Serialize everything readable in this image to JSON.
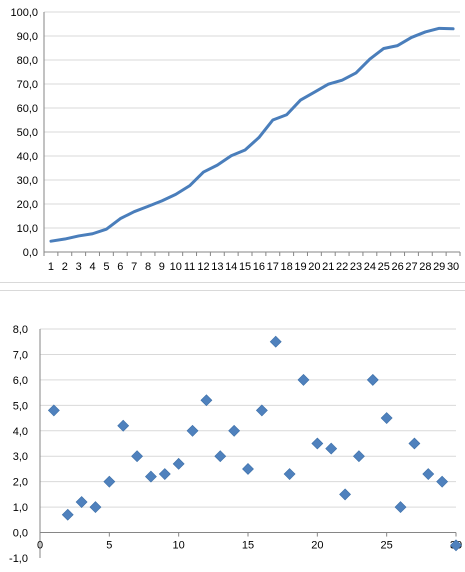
{
  "chart_data": [
    {
      "type": "line",
      "title": "",
      "xlabel": "",
      "ylabel": "",
      "categories": [
        "1",
        "2",
        "3",
        "4",
        "5",
        "6",
        "7",
        "8",
        "9",
        "10",
        "11",
        "12",
        "13",
        "14",
        "15",
        "16",
        "17",
        "18",
        "19",
        "20",
        "21",
        "22",
        "23",
        "24",
        "25",
        "26",
        "27",
        "28",
        "29",
        "30"
      ],
      "series": [
        {
          "color": "#4a7ebb",
          "values": [
            4.5,
            5.4,
            6.7,
            7.6,
            9.5,
            13.9,
            16.8,
            19.0,
            21.3,
            24.0,
            27.6,
            33.3,
            36.2,
            40.1,
            42.5,
            47.7,
            55.0,
            57.2,
            63.3,
            66.6,
            69.9,
            71.6,
            74.6,
            80.4,
            84.8,
            86.0,
            89.4,
            91.7,
            93.2,
            93.0
          ]
        }
      ],
      "ylim": [
        0,
        100
      ],
      "y_ticks": [
        "0,0",
        "10,0",
        "20,0",
        "30,0",
        "40,0",
        "50,0",
        "60,0",
        "70,0",
        "80,0",
        "90,0",
        "100,0"
      ],
      "grid": "horizontal"
    },
    {
      "type": "scatter",
      "title": "",
      "xlabel": "",
      "ylabel": "",
      "series": [
        {
          "color": "#4f81bd",
          "marker": "diamond",
          "x": [
            1,
            2,
            3,
            4,
            5,
            6,
            7,
            8,
            9,
            10,
            11,
            12,
            13,
            14,
            15,
            16,
            17,
            18,
            19,
            20,
            21,
            22,
            23,
            24,
            25,
            26,
            27,
            28,
            29,
            30
          ],
          "y": [
            4.8,
            0.7,
            1.2,
            1.0,
            2.0,
            4.2,
            3.0,
            2.2,
            2.3,
            2.7,
            4.0,
            5.2,
            3.0,
            4.0,
            2.5,
            4.8,
            7.5,
            2.3,
            6.0,
            3.5,
            3.3,
            1.5,
            3.0,
            6.0,
            4.5,
            1.0,
            3.5,
            2.3,
            2.0,
            -0.5
          ]
        }
      ],
      "xlim": [
        0,
        30
      ],
      "ylim": [
        -1,
        8
      ],
      "x_ticks": [
        "0",
        "5",
        "10",
        "15",
        "20",
        "25",
        "30"
      ],
      "y_ticks": [
        "-1,0",
        "0,0",
        "1,0",
        "2,0",
        "3,0",
        "4,0",
        "5,0",
        "6,0",
        "7,0",
        "8,0"
      ],
      "negative_tick_color": "#ff0000",
      "grid": "horizontal"
    }
  ]
}
